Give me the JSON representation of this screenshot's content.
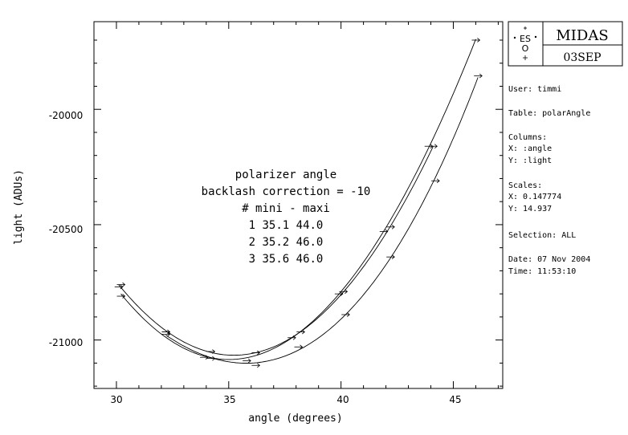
{
  "chart_data": {
    "type": "line",
    "title": "",
    "xlabel": "angle (degrees)",
    "ylabel": "light (ADUs)",
    "xlim": [
      29,
      47.2
    ],
    "ylim": [
      -21210,
      -19620
    ],
    "x_ticks": [
      30,
      35,
      40,
      45
    ],
    "y_ticks": [
      -20000,
      -20500,
      -21000
    ],
    "x_tick_labels": [
      "30",
      "35",
      "40",
      "45"
    ],
    "y_tick_labels": [
      "-20000",
      "-20500",
      "-21000"
    ],
    "grid": false,
    "annotation": {
      "lines": [
        "polarizer angle",
        "backlash correction = -10",
        "# mini - maxi",
        "1 35.1 44.0",
        "2 35.2 46.0",
        "3 35.6 46.0"
      ]
    },
    "series": [
      {
        "min": 35.1,
        "max": 44.0,
        "x": [
          30.1,
          30.2,
          32.2,
          34.2,
          36.2,
          38.2,
          40.1,
          42.2,
          44.1
        ],
        "y": [
          -20770,
          -20760,
          -20965,
          -21050,
          -21055,
          -20965,
          -20790,
          -20510,
          -20160
        ]
      },
      {
        "min": 35.2,
        "max": 46.0,
        "x": [
          30.2,
          32.2,
          33.9,
          35.8,
          37.8,
          39.9,
          41.9,
          43.9,
          46.0
        ],
        "y": [
          -20810,
          -20965,
          -21075,
          -21090,
          -20990,
          -20800,
          -20530,
          -20160,
          -19700
        ]
      },
      {
        "min": 35.6,
        "max": 46.0,
        "x": [
          32.2,
          34.2,
          36.2,
          38.1,
          40.2,
          42.2,
          44.2,
          46.1
        ],
        "y": [
          -20975,
          -21080,
          -21110,
          -21030,
          -20890,
          -20640,
          -20310,
          -19855
        ]
      }
    ]
  },
  "logo": {
    "brand": "MIDAS",
    "date": "03SEP",
    "eso": "ES",
    "eso_o": "O"
  },
  "info": {
    "user": "User: timmi",
    "table": "Table: polarAngle",
    "columns_label": "Columns:",
    "col_x": "X: :angle",
    "col_y": "Y: :light",
    "scales_label": "Scales:",
    "scale_x": "X: 0.147774",
    "scale_y": "Y: 14.937",
    "selection": "Selection:  ALL",
    "date": "Date: 07 Nov 2004",
    "time": "Time: 11:53:10"
  }
}
